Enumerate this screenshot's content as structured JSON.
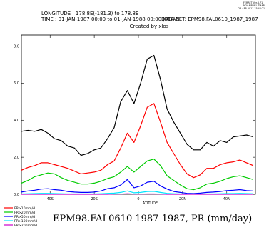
{
  "header": {
    "longitude": "LONGITUDE : 178.8E(-181.3) to 178.8E",
    "time": "TIME : 01-JAN-1987 00:00 to 01-JAN-1988 00:00 JULIAN",
    "dataset": "DATA SET: EPM98.FAL0610_1987_1987",
    "created": "Created by xlos"
  },
  "corner_stamp": [
    "FERRET Ver.6.71",
    "NOAA/PMEL TMAP",
    "23-APR-2017 15:46:21"
  ],
  "footer_title": "EPM98.FAL0610 1987 1987, PR (mm/day)",
  "colors": {
    "PR>10mm/d": "#ff0000",
    "PR>20mm/d": "#00cc00",
    "PR>50mm/d": "#0000ff",
    "PR>100mm/d": "#00e5ff",
    "PR>200mm/d": "#cc00cc",
    "total": "#000000"
  },
  "chart_data": {
    "type": "line",
    "xlabel": "LATITUDE",
    "ylabel": "",
    "xlim": [
      -53,
      53
    ],
    "ylim": [
      0,
      8.6
    ],
    "x_ticks": [
      -40,
      -20,
      0,
      20,
      40
    ],
    "x_tick_labels": [
      "40S",
      "20S",
      "0",
      "20N",
      "40N"
    ],
    "y_ticks": [
      0,
      2,
      4,
      6,
      8
    ],
    "y_tick_labels": [
      "0.0",
      "2.0",
      "4.0",
      "6.0",
      "8.0"
    ],
    "grid": false,
    "legend_position": "bottom-left",
    "x": [
      -53,
      -50,
      -47,
      -44,
      -41,
      -38,
      -35,
      -32,
      -29,
      -26,
      -23,
      -20,
      -17,
      -14,
      -11,
      -8,
      -5,
      -2,
      1,
      4,
      7,
      10,
      13,
      16,
      19,
      22,
      25,
      28,
      31,
      34,
      37,
      40,
      43,
      46,
      49,
      52
    ],
    "series": [
      {
        "name": "",
        "values": [
          3.4,
          3.45,
          3.4,
          3.5,
          3.3,
          3.0,
          2.9,
          2.6,
          2.5,
          2.1,
          2.2,
          2.4,
          2.5,
          3.0,
          3.6,
          5.0,
          5.6,
          4.9,
          6.0,
          7.3,
          7.5,
          6.2,
          4.6,
          3.9,
          3.3,
          2.7,
          2.4,
          2.4,
          2.8,
          2.6,
          2.9,
          2.8,
          3.1,
          3.15,
          3.2,
          3.1
        ]
      },
      {
        "name": "PR>10mm/d",
        "values": [
          1.3,
          1.45,
          1.55,
          1.7,
          1.7,
          1.6,
          1.5,
          1.4,
          1.25,
          1.1,
          1.15,
          1.2,
          1.3,
          1.6,
          1.8,
          2.5,
          3.3,
          2.8,
          3.7,
          4.7,
          4.9,
          3.9,
          2.8,
          2.2,
          1.6,
          1.1,
          0.9,
          1.05,
          1.4,
          1.4,
          1.6,
          1.7,
          1.75,
          1.85,
          1.7,
          1.55
        ]
      },
      {
        "name": "PR>20mm/d",
        "values": [
          0.6,
          0.75,
          0.95,
          1.05,
          1.15,
          1.1,
          0.9,
          0.75,
          0.65,
          0.55,
          0.55,
          0.6,
          0.7,
          0.85,
          0.95,
          1.2,
          1.5,
          1.2,
          1.5,
          1.8,
          1.9,
          1.55,
          1.0,
          0.75,
          0.5,
          0.3,
          0.25,
          0.35,
          0.55,
          0.6,
          0.7,
          0.85,
          0.95,
          1.0,
          0.9,
          0.8
        ]
      },
      {
        "name": "PR>50mm/d",
        "values": [
          0.12,
          0.18,
          0.22,
          0.28,
          0.3,
          0.25,
          0.22,
          0.15,
          0.12,
          0.1,
          0.1,
          0.12,
          0.18,
          0.3,
          0.35,
          0.5,
          0.8,
          0.35,
          0.45,
          0.65,
          0.7,
          0.45,
          0.28,
          0.15,
          0.1,
          0.05,
          0.04,
          0.06,
          0.1,
          0.12,
          0.15,
          0.2,
          0.22,
          0.25,
          0.2,
          0.18
        ]
      },
      {
        "name": "PR>100mm/d",
        "values": [
          0.02,
          0.03,
          0.04,
          0.05,
          0.05,
          0.04,
          0.03,
          0.02,
          0.02,
          0.02,
          0.02,
          0.02,
          0.03,
          0.05,
          0.06,
          0.1,
          0.18,
          0.08,
          0.1,
          0.15,
          0.16,
          0.1,
          0.05,
          0.03,
          0.02,
          0.01,
          0.01,
          0.01,
          0.02,
          0.02,
          0.03,
          0.04,
          0.04,
          0.05,
          0.04,
          0.03
        ]
      },
      {
        "name": "PR>200mm/d",
        "values": [
          0.0,
          0.0,
          0.0,
          0.0,
          0.0,
          0.0,
          0.0,
          0.0,
          0.0,
          0.0,
          0.0,
          0.0,
          0.0,
          0.0,
          0.01,
          0.01,
          0.03,
          0.01,
          0.01,
          0.02,
          0.02,
          0.01,
          0.0,
          0.0,
          0.0,
          0.0,
          0.0,
          0.0,
          0.0,
          0.0,
          0.0,
          0.0,
          0.0,
          0.0,
          0.0,
          0.0
        ]
      }
    ]
  }
}
